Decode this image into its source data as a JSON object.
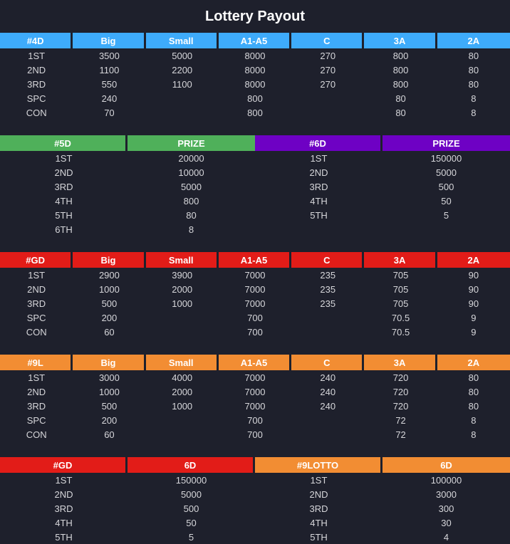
{
  "title": "Lottery Payout",
  "t4d": {
    "headers": [
      "#4D",
      "Big",
      "Small",
      "A1-A5",
      "C",
      "3A",
      "2A"
    ],
    "rows": [
      [
        "1ST",
        "3500",
        "5000",
        "8000",
        "270",
        "800",
        "80"
      ],
      [
        "2ND",
        "1100",
        "2200",
        "8000",
        "270",
        "800",
        "80"
      ],
      [
        "3RD",
        "550",
        "1100",
        "8000",
        "270",
        "800",
        "80"
      ],
      [
        "SPC",
        "240",
        "",
        "800",
        "",
        "80",
        "8"
      ],
      [
        "CON",
        "70",
        "",
        "800",
        "",
        "80",
        "8"
      ]
    ]
  },
  "t5d6d": {
    "headers": [
      "#5D",
      "PRIZE",
      "#6D",
      "PRIZE"
    ],
    "rows": [
      [
        "1ST",
        "20000",
        "1ST",
        "150000"
      ],
      [
        "2ND",
        "10000",
        "2ND",
        "5000"
      ],
      [
        "3RD",
        "5000",
        "3RD",
        "500"
      ],
      [
        "4TH",
        "800",
        "4TH",
        "50"
      ],
      [
        "5TH",
        "80",
        "5TH",
        "5"
      ],
      [
        "6TH",
        "8",
        "",
        ""
      ]
    ]
  },
  "tgd": {
    "headers": [
      "#GD",
      "Big",
      "Small",
      "A1-A5",
      "C",
      "3A",
      "2A"
    ],
    "rows": [
      [
        "1ST",
        "2900",
        "3900",
        "7000",
        "235",
        "705",
        "90"
      ],
      [
        "2ND",
        "1000",
        "2000",
        "7000",
        "235",
        "705",
        "90"
      ],
      [
        "3RD",
        "500",
        "1000",
        "7000",
        "235",
        "705",
        "90"
      ],
      [
        "SPC",
        "200",
        "",
        "700",
        "",
        "70.5",
        "9"
      ],
      [
        "CON",
        "60",
        "",
        "700",
        "",
        "70.5",
        "9"
      ]
    ]
  },
  "t9l": {
    "headers": [
      "#9L",
      "Big",
      "Small",
      "A1-A5",
      "C",
      "3A",
      "2A"
    ],
    "rows": [
      [
        "1ST",
        "3000",
        "4000",
        "7000",
        "240",
        "720",
        "80"
      ],
      [
        "2ND",
        "1000",
        "2000",
        "7000",
        "240",
        "720",
        "80"
      ],
      [
        "3RD",
        "500",
        "1000",
        "7000",
        "240",
        "720",
        "80"
      ],
      [
        "SPC",
        "200",
        "",
        "700",
        "",
        "72",
        "8"
      ],
      [
        "CON",
        "60",
        "",
        "700",
        "",
        "72",
        "8"
      ]
    ]
  },
  "t6d": {
    "headers": [
      "#GD",
      "6D",
      "#9LOTTO",
      "6D"
    ],
    "rows": [
      [
        "1ST",
        "150000",
        "1ST",
        "100000"
      ],
      [
        "2ND",
        "5000",
        "2ND",
        "3000"
      ],
      [
        "3RD",
        "500",
        "3RD",
        "300"
      ],
      [
        "4TH",
        "50",
        "4TH",
        "30"
      ],
      [
        "5TH",
        "5",
        "5TH",
        "4"
      ]
    ]
  },
  "colors": {
    "blue": "#3eabfb",
    "green": "#4fb05a",
    "purple": "#6e01c4",
    "red": "#e21c18",
    "orange": "#f28d33",
    "background": "#1e202c"
  }
}
